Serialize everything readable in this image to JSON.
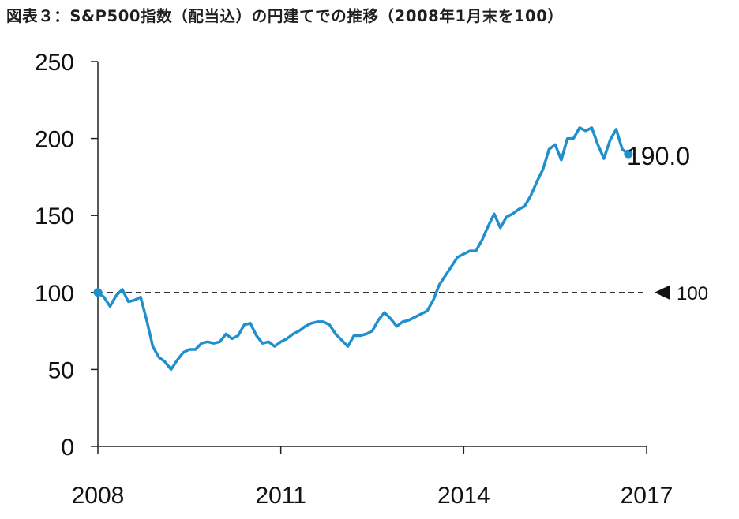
{
  "chart_data": {
    "type": "line",
    "title": "図表３：S&P500指数（配当込）の円建てでの推移（2008年1月末を100）",
    "xlabel": "",
    "ylabel": "",
    "xlim": [
      2008,
      2017
    ],
    "ylim": [
      0,
      250
    ],
    "x_ticks": [
      "2008",
      "2011",
      "2014",
      "2017"
    ],
    "y_ticks": [
      "0",
      "50",
      "100",
      "150",
      "200",
      "250"
    ],
    "grid": false,
    "legend": "none",
    "reference_line": {
      "value": 100,
      "label": "100",
      "style": "dashed",
      "marker": "left-triangle"
    },
    "end_label": "190.0",
    "line_color": "#1f8fcd",
    "series": [
      {
        "x": [
          2008.0,
          2008.1,
          2008.2,
          2008.3,
          2008.4,
          2008.5,
          2008.6,
          2008.7,
          2008.8,
          2008.9,
          2009.0,
          2009.1,
          2009.2,
          2009.3,
          2009.4,
          2009.5,
          2009.6,
          2009.7,
          2009.8,
          2009.9,
          2010.0,
          2010.1,
          2010.2,
          2010.3,
          2010.4,
          2010.5,
          2010.6,
          2010.7,
          2010.8,
          2010.9,
          2011.0,
          2011.1,
          2011.2,
          2011.3,
          2011.4,
          2011.5,
          2011.6,
          2011.7,
          2011.8,
          2011.9,
          2012.0,
          2012.1,
          2012.2,
          2012.3,
          2012.4,
          2012.5,
          2012.6,
          2012.7,
          2012.8,
          2012.9,
          2013.0,
          2013.1,
          2013.2,
          2013.3,
          2013.4,
          2013.5,
          2013.6,
          2013.7,
          2013.8,
          2013.9,
          2014.0,
          2014.1,
          2014.2,
          2014.3,
          2014.4,
          2014.5,
          2014.6,
          2014.7,
          2014.8,
          2014.9,
          2015.0,
          2015.1,
          2015.2,
          2015.3,
          2015.4,
          2015.5,
          2015.6,
          2015.7,
          2015.8,
          2015.9,
          2016.0,
          2016.1,
          2016.2,
          2016.3,
          2016.4,
          2016.5,
          2016.6,
          2016.7
        ],
        "values": [
          100,
          97,
          91,
          98,
          102,
          94,
          95,
          97,
          82,
          65,
          58,
          55,
          50,
          56,
          61,
          63,
          63,
          67,
          68,
          67,
          68,
          73,
          70,
          72,
          79,
          80,
          72,
          67,
          68,
          65,
          68,
          70,
          73,
          75,
          78,
          80,
          81,
          81,
          79,
          73,
          69,
          65,
          72,
          72,
          73,
          75,
          82,
          87,
          83,
          78,
          81,
          82,
          84,
          86,
          88,
          95,
          105,
          111,
          117,
          123,
          125,
          127,
          127,
          134,
          143,
          151,
          142,
          149,
          151,
          154,
          156,
          163,
          172,
          180,
          193,
          196,
          186,
          200,
          200,
          207,
          205,
          207,
          196,
          187,
          199,
          206,
          193,
          190
        ]
      }
    ]
  }
}
